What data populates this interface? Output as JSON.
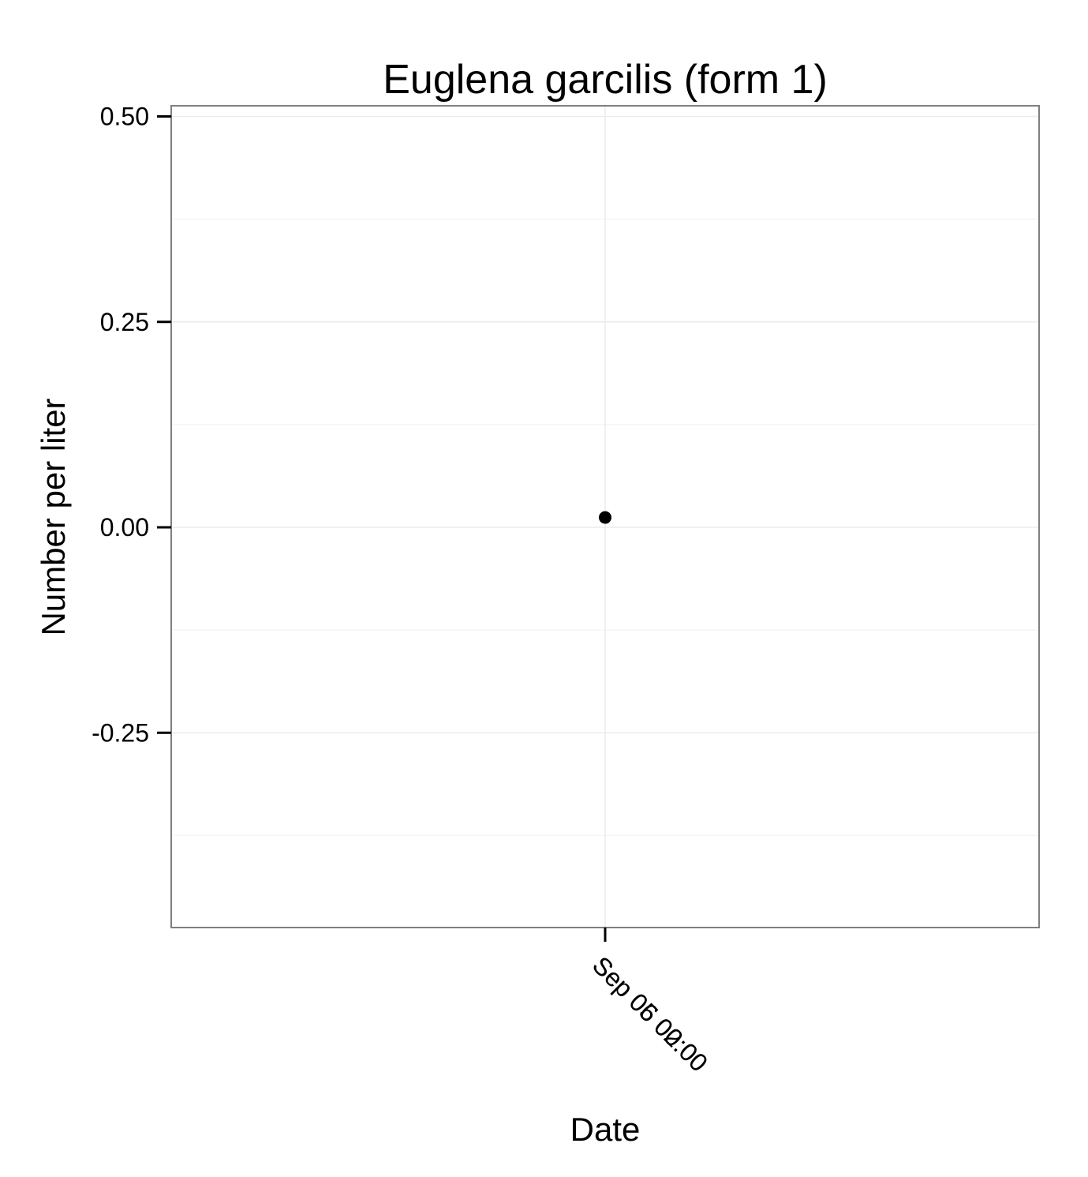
{
  "chart_data": {
    "type": "scatter",
    "title": "Euglena garcilis (form 1)",
    "xlabel": "Date",
    "ylabel": "Number per liter",
    "x_tick_labels": [
      "Sep 05 02:00",
      "Sep 06 00:00"
    ],
    "y_ticks": [
      0.5,
      0.25,
      0.0,
      -0.25
    ],
    "y_tick_labels": [
      "0.50",
      "0.25",
      "0.00",
      "-0.25"
    ],
    "ylim": [
      -0.487,
      0.513
    ],
    "points": [
      {
        "x": "Sep 06 00:00",
        "y": 0.012
      }
    ],
    "grid": true,
    "point_color": "#000000",
    "panel_border_color": "#7f7f7f",
    "grid_color": "#ebebeb"
  }
}
